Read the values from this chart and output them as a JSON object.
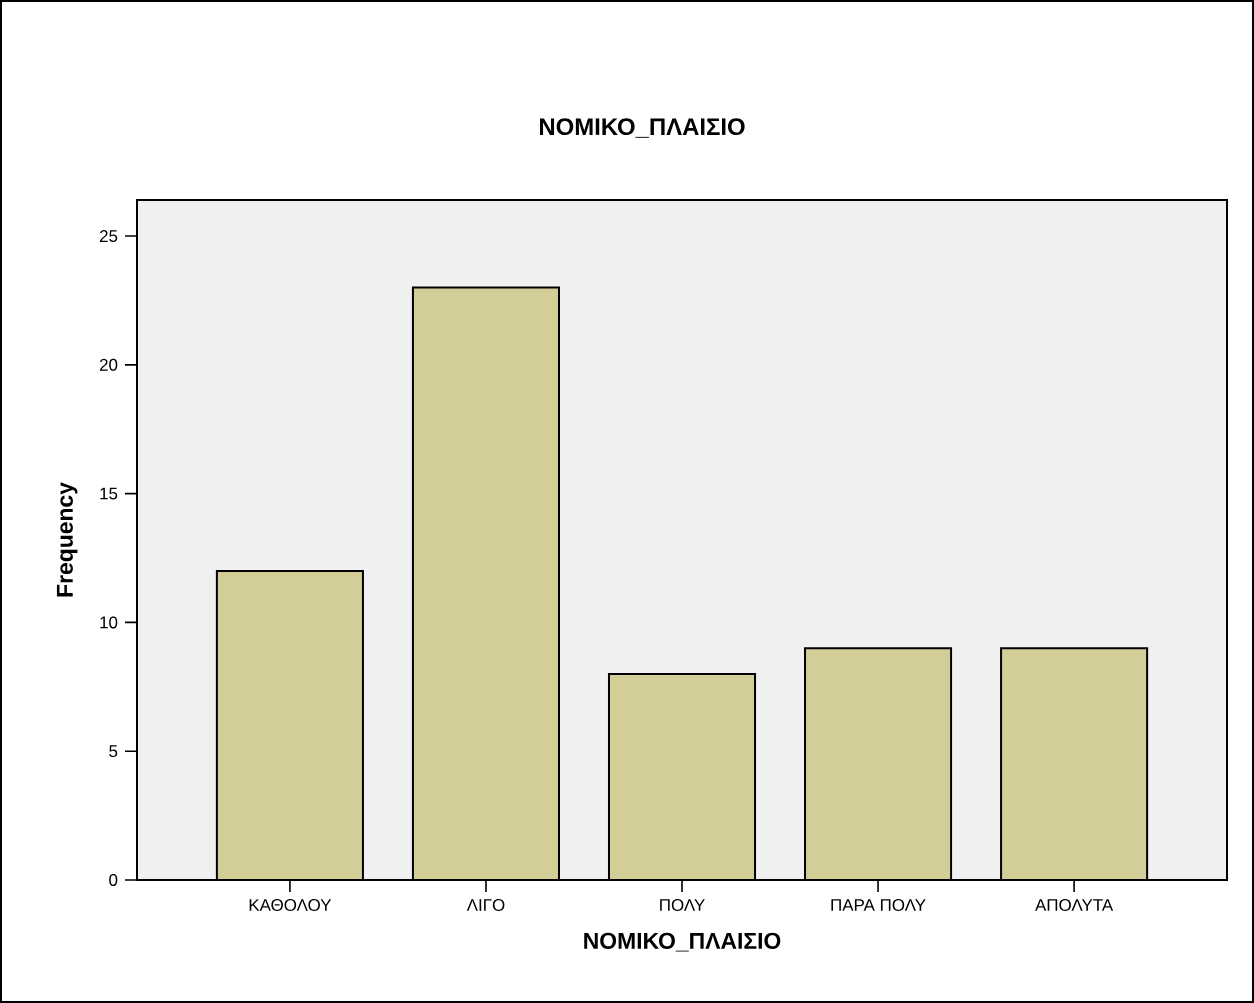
{
  "chart_data": {
    "type": "bar",
    "title": "ΝΟΜΙΚΟ_ΠΛΑΙΣΙΟ",
    "xlabel": "ΝΟΜΙΚΟ_ΠΛΑΙΣΙΟ",
    "ylabel": "Frequency",
    "categories": [
      "ΚΑΘΟΛΟΥ",
      "ΛΙΓΟ",
      "ΠΟΛΥ",
      "ΠΑΡΑ ΠΟΛΥ",
      "ΑΠΟΛΥΤΑ"
    ],
    "values": [
      12,
      23,
      8,
      9,
      9
    ],
    "color": "#d3ce97",
    "ylim": [
      0,
      26.4
    ],
    "yticks": [
      0,
      5,
      10,
      15,
      20,
      25
    ]
  }
}
